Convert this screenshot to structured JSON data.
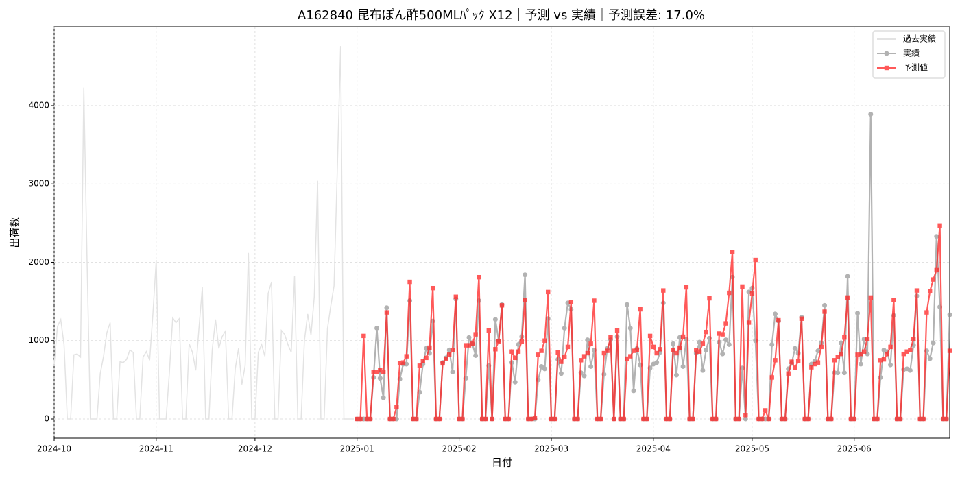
{
  "chart_data": {
    "type": "line",
    "title": "A162840 昆布ぽん酢500MLﾊﾟｯｸ X12｜予測 vs 実績｜予測誤差: 17.0%",
    "x_label": "日付",
    "y_label": "出荷数",
    "ylim": [
      -245,
      5006
    ],
    "yticks": [
      0,
      1000,
      2000,
      3000,
      4000
    ],
    "grid": true,
    "legend": "upper right",
    "categories": [
      "2024-10",
      null,
      null,
      null,
      null,
      null,
      null,
      null,
      null,
      null,
      null,
      null,
      null,
      null,
      null,
      null,
      null,
      null,
      null,
      null,
      null,
      null,
      null,
      null,
      null,
      null,
      null,
      null,
      null,
      null,
      null,
      "2024-11",
      null,
      null,
      null,
      null,
      null,
      null,
      null,
      null,
      null,
      null,
      null,
      null,
      null,
      null,
      null,
      null,
      null,
      null,
      null,
      null,
      null,
      null,
      null,
      null,
      null,
      null,
      null,
      null,
      null,
      "2024-12",
      null,
      null,
      null,
      null,
      null,
      null,
      null,
      null,
      null,
      null,
      null,
      null,
      null,
      null,
      null,
      null,
      null,
      null,
      null,
      null,
      null,
      null,
      null,
      null,
      null,
      null,
      null,
      null,
      null,
      null,
      "2025-01",
      null,
      null,
      null,
      null,
      null,
      null,
      null,
      null,
      null,
      null,
      null,
      null,
      null,
      null,
      null,
      null,
      null,
      null,
      null,
      null,
      null,
      null,
      null,
      null,
      null,
      null,
      null,
      null,
      null,
      null,
      "2025-02",
      null,
      null,
      null,
      null,
      null,
      null,
      null,
      null,
      null,
      null,
      null,
      null,
      null,
      null,
      null,
      null,
      null,
      null,
      null,
      null,
      null,
      null,
      null,
      null,
      null,
      null,
      null,
      "2025-03",
      null,
      null,
      null,
      null,
      null,
      null,
      null,
      null,
      null,
      null,
      null,
      null,
      null,
      null,
      null,
      null,
      null,
      null,
      null,
      null,
      null,
      null,
      null,
      null,
      null,
      null,
      null,
      null,
      null,
      null,
      "2025-04",
      null,
      null,
      null,
      null,
      null,
      null,
      null,
      null,
      null,
      null,
      null,
      null,
      null,
      null,
      null,
      null,
      null,
      null,
      null,
      null,
      null,
      null,
      null,
      null,
      null,
      null,
      null,
      null,
      null,
      "2025-05",
      null,
      null,
      null,
      null,
      null,
      null,
      null,
      null,
      null,
      null,
      null,
      null,
      null,
      null,
      null,
      null,
      null,
      null,
      null,
      null,
      null,
      null,
      null,
      null,
      null,
      null,
      null,
      null,
      null,
      null,
      "2025-06",
      null,
      null,
      null,
      null,
      null,
      null,
      null,
      null,
      null,
      null,
      null,
      null,
      null,
      null,
      null,
      null,
      null,
      null,
      null,
      null,
      null,
      null,
      null,
      null,
      null,
      null,
      null,
      null,
      null
    ],
    "series": [
      {
        "name": "過去実績",
        "color": "#e3e3e3",
        "marker": "none",
        "values": [
          700,
          1180,
          1270,
          950,
          0,
          0,
          820,
          830,
          790,
          4230,
          2000,
          0,
          0,
          0,
          580,
          800,
          1100,
          1230,
          0,
          0,
          730,
          720,
          760,
          880,
          850,
          0,
          0,
          790,
          860,
          750,
          1350,
          2030,
          0,
          0,
          0,
          600,
          1290,
          1230,
          1280,
          0,
          0,
          960,
          850,
          620,
          1170,
          1680,
          0,
          0,
          880,
          1270,
          900,
          1050,
          1120,
          0,
          0,
          640,
          900,
          440,
          680,
          2120,
          0,
          0,
          850,
          950,
          800,
          1600,
          1750,
          0,
          0,
          1130,
          1080,
          950,
          850,
          1820,
          0,
          0,
          1000,
          1340,
          1070,
          1560,
          3040,
          0,
          0,
          1150,
          1440,
          1700,
          3200,
          4760,
          0,
          0,
          0,
          0,
          null,
          null,
          null,
          null,
          null,
          null,
          null,
          null,
          null,
          null,
          null,
          null,
          null,
          null,
          null,
          null,
          null,
          null,
          null,
          null,
          null,
          null,
          null,
          null,
          null,
          null,
          null,
          null,
          null,
          null,
          null,
          null,
          null,
          null,
          null,
          null,
          null,
          null,
          null,
          null,
          null,
          null,
          null,
          null,
          null,
          null,
          null,
          null,
          null,
          null,
          null,
          null,
          null,
          null,
          null,
          null,
          null,
          null,
          null,
          null,
          null,
          null,
          null,
          null,
          null,
          null,
          null,
          null,
          null,
          null,
          null,
          null,
          null,
          null,
          null,
          null,
          null,
          null,
          null,
          null,
          null,
          null,
          null,
          null,
          null,
          null,
          null,
          null,
          null,
          null,
          null,
          null,
          null,
          null,
          null,
          null,
          null,
          null,
          null,
          null,
          null,
          null,
          null,
          null,
          null,
          null,
          null,
          null,
          null,
          null,
          null,
          null,
          null,
          null,
          null,
          null,
          null,
          null,
          null,
          null,
          null,
          null,
          null,
          null,
          null,
          null,
          null,
          null,
          null,
          null,
          null,
          null,
          null,
          null,
          null,
          null,
          null,
          null,
          null,
          null,
          null,
          null,
          null,
          null,
          null,
          null,
          null,
          null,
          null,
          null,
          null,
          null,
          null,
          null,
          null,
          null,
          null,
          null,
          null,
          null,
          null,
          null,
          null,
          null,
          null,
          null,
          null,
          null,
          null,
          null,
          null,
          null,
          null,
          null,
          null,
          null,
          null,
          null,
          null,
          null,
          null
        ]
      },
      {
        "name": "実績",
        "color": "#999999",
        "marker": "circle",
        "values": [
          null,
          null,
          null,
          null,
          null,
          null,
          null,
          null,
          null,
          null,
          null,
          null,
          null,
          null,
          null,
          null,
          null,
          null,
          null,
          null,
          null,
          null,
          null,
          null,
          null,
          null,
          null,
          null,
          null,
          null,
          null,
          null,
          null,
          null,
          null,
          null,
          null,
          null,
          null,
          null,
          null,
          null,
          null,
          null,
          null,
          null,
          null,
          null,
          null,
          null,
          null,
          null,
          null,
          null,
          null,
          null,
          null,
          null,
          null,
          null,
          null,
          null,
          null,
          null,
          null,
          null,
          null,
          null,
          null,
          null,
          null,
          null,
          null,
          null,
          null,
          null,
          null,
          null,
          null,
          null,
          null,
          null,
          null,
          null,
          null,
          null,
          null,
          null,
          null,
          null,
          null,
          null,
          0,
          0,
          0,
          0,
          0,
          530,
          1160,
          520,
          270,
          1420,
          0,
          0,
          0,
          510,
          700,
          700,
          1510,
          0,
          0,
          340,
          700,
          900,
          840,
          1250,
          0,
          0,
          720,
          780,
          880,
          600,
          1530,
          0,
          0,
          520,
          1040,
          960,
          810,
          1510,
          0,
          0,
          680,
          0,
          1270,
          1000,
          1460,
          0,
          0,
          720,
          470,
          950,
          1050,
          1840,
          0,
          0,
          0,
          500,
          670,
          640,
          1280,
          0,
          0,
          760,
          580,
          1160,
          1480,
          1400,
          0,
          0,
          590,
          550,
          1010,
          670,
          880,
          0,
          0,
          570,
          900,
          1010,
          0,
          1050,
          0,
          0,
          1460,
          1160,
          360,
          900,
          690,
          0,
          0,
          650,
          700,
          720,
          850,
          1480,
          0,
          0,
          960,
          560,
          1040,
          670,
          1020,
          0,
          0,
          840,
          980,
          620,
          880,
          1030,
          0,
          0,
          980,
          830,
          1010,
          950,
          1810,
          0,
          0,
          650,
          0,
          1620,
          1670,
          1000,
          0,
          0,
          0,
          0,
          950,
          1340,
          1250,
          0,
          0,
          640,
          710,
          900,
          840,
          1300,
          0,
          0,
          700,
          740,
          870,
          970,
          1450,
          0,
          0,
          590,
          590,
          970,
          590,
          1820,
          0,
          0,
          1350,
          700,
          1020,
          830,
          3890,
          0,
          0,
          530,
          880,
          860,
          690,
          1320,
          0,
          0,
          630,
          640,
          620,
          940,
          1570,
          0,
          0,
          870,
          770,
          970,
          2330,
          1430,
          0,
          0,
          1330
        ]
      },
      {
        "name": "予測値",
        "color": "#ff2222",
        "marker": "square",
        "values": [
          null,
          null,
          null,
          null,
          null,
          null,
          null,
          null,
          null,
          null,
          null,
          null,
          null,
          null,
          null,
          null,
          null,
          null,
          null,
          null,
          null,
          null,
          null,
          null,
          null,
          null,
          null,
          null,
          null,
          null,
          null,
          null,
          null,
          null,
          null,
          null,
          null,
          null,
          null,
          null,
          null,
          null,
          null,
          null,
          null,
          null,
          null,
          null,
          null,
          null,
          null,
          null,
          null,
          null,
          null,
          null,
          null,
          null,
          null,
          null,
          null,
          null,
          null,
          null,
          null,
          null,
          null,
          null,
          null,
          null,
          null,
          null,
          null,
          null,
          null,
          null,
          null,
          null,
          null,
          null,
          null,
          null,
          null,
          null,
          null,
          null,
          null,
          null,
          null,
          null,
          null,
          null,
          0,
          0,
          1060,
          0,
          0,
          600,
          600,
          620,
          600,
          1360,
          0,
          0,
          150,
          710,
          720,
          800,
          1750,
          0,
          0,
          680,
          740,
          780,
          910,
          1670,
          0,
          0,
          710,
          770,
          820,
          880,
          1560,
          0,
          0,
          940,
          940,
          960,
          1080,
          1810,
          0,
          0,
          1130,
          0,
          890,
          990,
          1450,
          0,
          0,
          860,
          780,
          860,
          990,
          1520,
          0,
          0,
          10,
          820,
          870,
          1000,
          1620,
          0,
          0,
          850,
          730,
          790,
          920,
          1490,
          0,
          0,
          750,
          800,
          840,
          960,
          1510,
          0,
          0,
          840,
          870,
          1040,
          0,
          1130,
          0,
          0,
          770,
          800,
          870,
          880,
          1400,
          0,
          0,
          1060,
          920,
          840,
          890,
          1640,
          0,
          0,
          880,
          840,
          910,
          1050,
          1680,
          0,
          0,
          880,
          860,
          960,
          1110,
          1540,
          0,
          0,
          1090,
          1080,
          1220,
          1610,
          2130,
          0,
          0,
          1690,
          50,
          1230,
          1600,
          2030,
          0,
          0,
          110,
          0,
          530,
          750,
          1260,
          0,
          0,
          580,
          730,
          650,
          740,
          1280,
          0,
          0,
          660,
          700,
          720,
          920,
          1370,
          0,
          0,
          750,
          790,
          830,
          1040,
          1550,
          0,
          0,
          820,
          830,
          860,
          1020,
          1550,
          0,
          0,
          750,
          760,
          830,
          920,
          1520,
          0,
          0,
          830,
          860,
          880,
          1020,
          1640,
          0,
          0,
          1360,
          1630,
          1780,
          1900,
          2470,
          0,
          0,
          870
        ]
      }
    ]
  }
}
